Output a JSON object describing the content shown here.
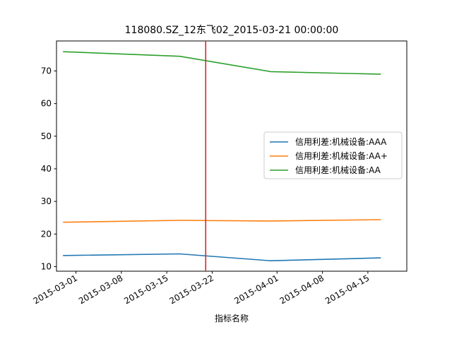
{
  "chart_data": {
    "type": "line",
    "title": "118080.SZ_12东飞02_2015-03-21 00:00:00",
    "xlabel": "指标名称",
    "ylabel": "",
    "x": [
      "2015-02-27",
      "2015-03-17",
      "2015-03-31",
      "2015-04-17"
    ],
    "series": [
      {
        "name": "信用利差:机械设备:AAA",
        "color": "#1f77b4",
        "values": [
          13.4,
          13.9,
          11.8,
          12.7
        ]
      },
      {
        "name": "信用利差:机械设备:AA+",
        "color": "#ff7f0e",
        "values": [
          23.6,
          24.2,
          24.0,
          24.4
        ]
      },
      {
        "name": "信用利差:机械设备:AA",
        "color": "#2ca02c",
        "values": [
          75.9,
          74.5,
          69.8,
          69.0
        ]
      }
    ],
    "xlim": [
      "2015-02-26",
      "2015-04-21"
    ],
    "ylim": [
      8.6,
      79.2
    ],
    "yticks": [
      10,
      20,
      30,
      40,
      50,
      60,
      70
    ],
    "xticks": [
      "2015-03-01",
      "2015-03-08",
      "2015-03-15",
      "2015-03-22",
      "2015-04-01",
      "2015-04-08",
      "2015-04-15"
    ],
    "vline": {
      "x": "2015-03-21",
      "color": "#d62728"
    },
    "legend": "center-right",
    "grid": false
  }
}
